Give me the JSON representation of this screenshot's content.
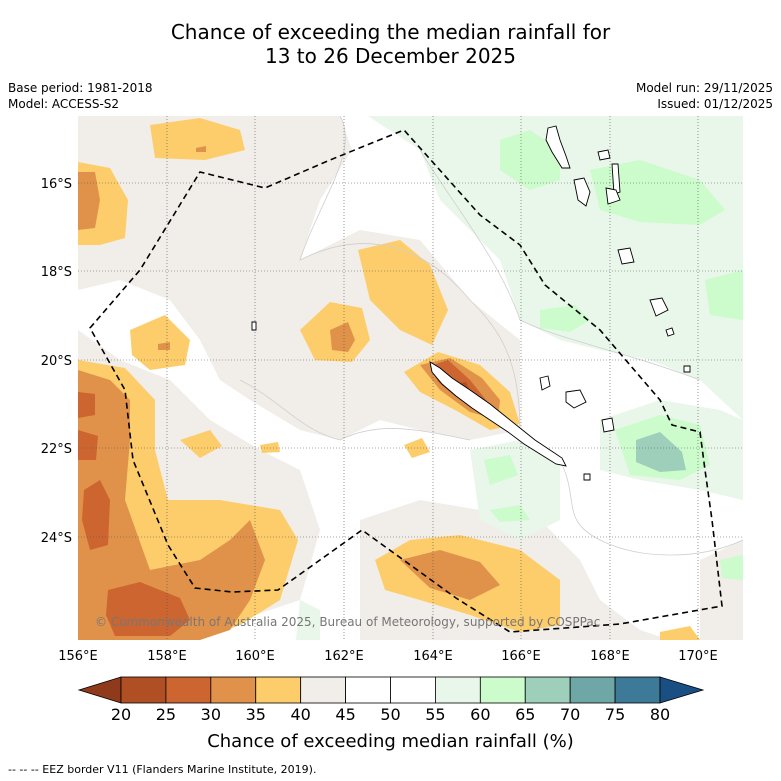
{
  "header": {
    "title_line1": "Chance of exceeding the median rainfall for",
    "title_line2": "13 to 26 December 2025",
    "base_period": "Base period: 1981-2018",
    "model": "Model: ACCESS-S2",
    "model_run": "Model run: 29/11/2025",
    "issued": "Issued: 01/12/2025"
  },
  "map": {
    "copyright": "© Commonwealth of Australia 2025, Bureau of Meteorology, supported by COSPPac",
    "lon_labels": [
      "156°E",
      "158°E",
      "160°E",
      "162°E",
      "164°E",
      "166°E",
      "168°E",
      "170°E"
    ],
    "lat_labels": [
      "16°S",
      "18°S",
      "20°S",
      "22°S",
      "24°S"
    ]
  },
  "colorbar": {
    "ticks": [
      "20",
      "25",
      "30",
      "35",
      "40",
      "45",
      "50",
      "55",
      "60",
      "65",
      "70",
      "75",
      "80"
    ],
    "colors": [
      "#8e3a1b",
      "#b14f24",
      "#cc6530",
      "#e0924a",
      "#fdcd6b",
      "#f1ede8",
      "#ffffff",
      "#ffffff",
      "#e9f6ea",
      "#ccfbcc",
      "#9ecfba",
      "#6fa6a6",
      "#3d7a98",
      "#1a4f84"
    ],
    "label": "Chance of exceeding median rainfall (%)"
  },
  "footer": {
    "eez_note": "--  --  -- EEZ border V11 (Flanders Marine Institute, 2019)."
  }
}
